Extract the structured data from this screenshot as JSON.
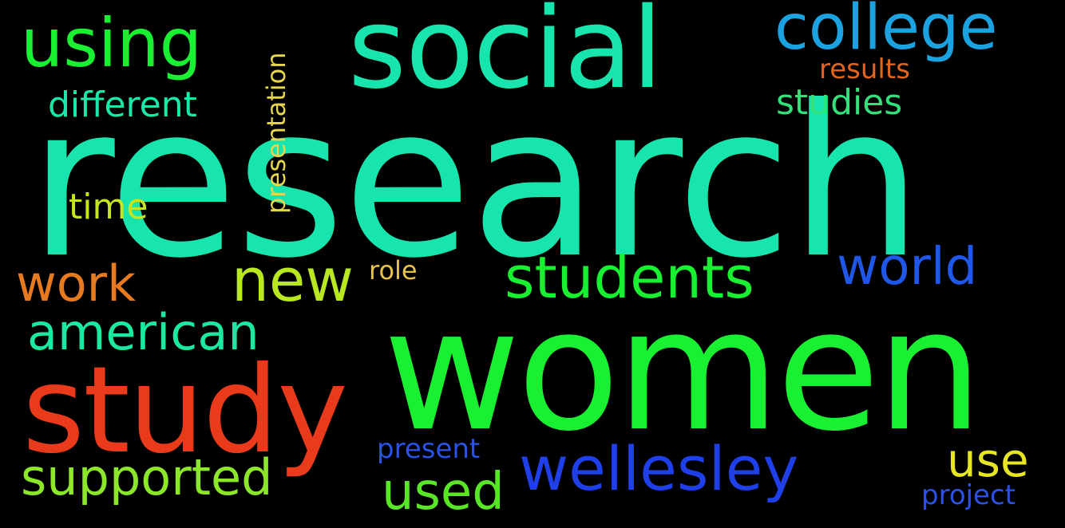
{
  "background_color": "#000000",
  "words": [
    {
      "key": "research",
      "text": "research",
      "color": "#17e5ad"
    },
    {
      "key": "women",
      "text": "women",
      "color": "#19f032"
    },
    {
      "key": "social",
      "text": "social",
      "color": "#17e5ad"
    },
    {
      "key": "study",
      "text": "study",
      "color": "#ea3a1c"
    },
    {
      "key": "college",
      "text": "college",
      "color": "#1aa3e0"
    },
    {
      "key": "using",
      "text": "using",
      "color": "#19f032"
    },
    {
      "key": "students",
      "text": "students",
      "color": "#19f032"
    },
    {
      "key": "wellesley",
      "text": "wellesley",
      "color": "#1f3fe8"
    },
    {
      "key": "new",
      "text": "new",
      "color": "#b7e820"
    },
    {
      "key": "american",
      "text": "american",
      "color": "#19eaa0"
    },
    {
      "key": "supported",
      "text": "supported",
      "color": "#8ce62a"
    },
    {
      "key": "work",
      "text": "work",
      "color": "#e57a1f"
    },
    {
      "key": "world",
      "text": "world",
      "color": "#1f58e8"
    },
    {
      "key": "used",
      "text": "used",
      "color": "#58e626"
    },
    {
      "key": "different",
      "text": "different",
      "color": "#19e8a8"
    },
    {
      "key": "studies",
      "text": "studies",
      "color": "#33e07c"
    },
    {
      "key": "use",
      "text": "use",
      "color": "#e6e626"
    },
    {
      "key": "time",
      "text": "time",
      "color": "#c4e61e"
    },
    {
      "key": "presentation",
      "text": "presentation",
      "color": "#e6d64a"
    },
    {
      "key": "results",
      "text": "results",
      "color": "#e0661e"
    },
    {
      "key": "role",
      "text": "role",
      "color": "#e6c24a"
    },
    {
      "key": "present",
      "text": "present",
      "color": "#2a52e6"
    },
    {
      "key": "project",
      "text": "project",
      "color": "#2a52e6"
    }
  ]
}
